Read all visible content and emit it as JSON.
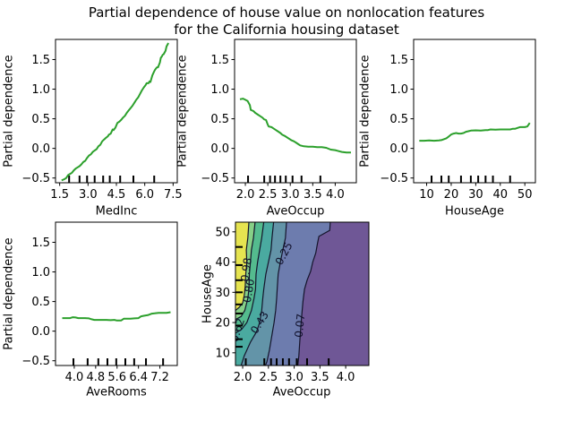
{
  "title": {
    "line1": "Partial dependence of house value on nonlocation features",
    "line2": "for the California housing dataset"
  },
  "colors": {
    "background": "#ffffff",
    "text": "#000000",
    "spine": "#000000",
    "pd_line": "#2ca02c",
    "contour_line": "#14142b"
  },
  "chart_data": [
    {
      "id": "medinc",
      "type": "line",
      "xlabel": "MedInc",
      "ylabel": "Partial dependence",
      "xlim": [
        1.28,
        7.72
      ],
      "ylim": [
        -0.58,
        1.84
      ],
      "xticks": {
        "values": [
          1.5,
          3.0,
          4.5,
          6.0,
          7.5
        ],
        "labels": [
          "1.5",
          "3.0",
          "4.5",
          "6.0",
          "7.5"
        ]
      },
      "yticks": {
        "values": [
          -0.5,
          0.0,
          0.5,
          1.0,
          1.5
        ],
        "labels": [
          "−0.5",
          "0.0",
          "0.5",
          "1.0",
          "1.5"
        ]
      },
      "rug_x": [
        2.0,
        2.55,
        2.95,
        3.35,
        3.8,
        4.15,
        4.7,
        5.4,
        6.5
      ],
      "line_color": "#2ca02c",
      "points": [
        [
          1.6,
          -0.54
        ],
        [
          1.75,
          -0.52
        ],
        [
          1.85,
          -0.5
        ],
        [
          1.95,
          -0.45
        ],
        [
          2.05,
          -0.43
        ],
        [
          2.15,
          -0.41
        ],
        [
          2.25,
          -0.37
        ],
        [
          2.35,
          -0.34
        ],
        [
          2.45,
          -0.32
        ],
        [
          2.55,
          -0.3
        ],
        [
          2.65,
          -0.27
        ],
        [
          2.75,
          -0.23
        ],
        [
          2.85,
          -0.21
        ],
        [
          2.95,
          -0.16
        ],
        [
          3.05,
          -0.12
        ],
        [
          3.15,
          -0.1
        ],
        [
          3.25,
          -0.06
        ],
        [
          3.35,
          -0.035
        ],
        [
          3.45,
          -0.015
        ],
        [
          3.55,
          0.035
        ],
        [
          3.65,
          0.06
        ],
        [
          3.75,
          0.12
        ],
        [
          3.85,
          0.15
        ],
        [
          3.95,
          0.18
        ],
        [
          4.05,
          0.205
        ],
        [
          4.1,
          0.23
        ],
        [
          4.2,
          0.25
        ],
        [
          4.3,
          0.32
        ],
        [
          4.35,
          0.31
        ],
        [
          4.45,
          0.35
        ],
        [
          4.55,
          0.43
        ],
        [
          4.65,
          0.45
        ],
        [
          4.75,
          0.48
        ],
        [
          4.85,
          0.52
        ],
        [
          4.95,
          0.55
        ],
        [
          5.05,
          0.6
        ],
        [
          5.15,
          0.64
        ],
        [
          5.25,
          0.68
        ],
        [
          5.35,
          0.72
        ],
        [
          5.45,
          0.77
        ],
        [
          5.55,
          0.82
        ],
        [
          5.65,
          0.86
        ],
        [
          5.75,
          0.92
        ],
        [
          5.85,
          0.98
        ],
        [
          5.95,
          1.03
        ],
        [
          6.05,
          1.07
        ],
        [
          6.1,
          1.1
        ],
        [
          6.2,
          1.1
        ],
        [
          6.25,
          1.13
        ],
        [
          6.3,
          1.12
        ],
        [
          6.4,
          1.23
        ],
        [
          6.5,
          1.3
        ],
        [
          6.55,
          1.33
        ],
        [
          6.6,
          1.35
        ],
        [
          6.65,
          1.37
        ],
        [
          6.7,
          1.37
        ],
        [
          6.8,
          1.45
        ],
        [
          6.85,
          1.53
        ],
        [
          6.9,
          1.55
        ],
        [
          6.95,
          1.58
        ],
        [
          7.0,
          1.59
        ],
        [
          7.05,
          1.62
        ],
        [
          7.1,
          1.65
        ],
        [
          7.15,
          1.72
        ],
        [
          7.25,
          1.78
        ]
      ]
    },
    {
      "id": "aveoccup",
      "type": "line",
      "xlabel": "AveOccup",
      "ylabel": "Partial dependence",
      "xlim": [
        1.76,
        4.47
      ],
      "ylim": [
        -0.58,
        1.84
      ],
      "xticks": {
        "values": [
          2.0,
          2.5,
          3.0,
          3.5,
          4.0
        ],
        "labels": [
          "2.0",
          "2.5",
          "3.0",
          "3.5",
          "4.0"
        ]
      },
      "yticks": {
        "values": [
          -0.5,
          0.0,
          0.5,
          1.0,
          1.5
        ],
        "labels": [
          "−0.5",
          "0.0",
          "0.5",
          "1.0",
          "1.5"
        ]
      },
      "rug_x": [
        2.06,
        2.42,
        2.55,
        2.66,
        2.78,
        2.9,
        3.05,
        3.25,
        3.67
      ],
      "line_color": "#2ca02c",
      "points": [
        [
          1.88,
          0.83
        ],
        [
          1.95,
          0.84
        ],
        [
          2.0,
          0.82
        ],
        [
          2.05,
          0.8
        ],
        [
          2.1,
          0.73
        ],
        [
          2.12,
          0.65
        ],
        [
          2.18,
          0.63
        ],
        [
          2.22,
          0.6
        ],
        [
          2.28,
          0.57
        ],
        [
          2.32,
          0.55
        ],
        [
          2.38,
          0.52
        ],
        [
          2.42,
          0.49
        ],
        [
          2.46,
          0.48
        ],
        [
          2.5,
          0.4
        ],
        [
          2.52,
          0.37
        ],
        [
          2.58,
          0.36
        ],
        [
          2.62,
          0.34
        ],
        [
          2.68,
          0.31
        ],
        [
          2.72,
          0.29
        ],
        [
          2.78,
          0.26
        ],
        [
          2.82,
          0.23
        ],
        [
          2.88,
          0.21
        ],
        [
          2.92,
          0.19
        ],
        [
          2.98,
          0.16
        ],
        [
          3.02,
          0.14
        ],
        [
          3.08,
          0.12
        ],
        [
          3.12,
          0.1
        ],
        [
          3.18,
          0.07
        ],
        [
          3.22,
          0.05
        ],
        [
          3.3,
          0.035
        ],
        [
          3.4,
          0.03
        ],
        [
          3.5,
          0.03
        ],
        [
          3.6,
          0.02
        ],
        [
          3.7,
          0.02
        ],
        [
          3.8,
          0.01
        ],
        [
          3.9,
          -0.02
        ],
        [
          4.0,
          -0.03
        ],
        [
          4.05,
          -0.04
        ],
        [
          4.15,
          -0.06
        ],
        [
          4.25,
          -0.07
        ],
        [
          4.35,
          -0.07
        ]
      ]
    },
    {
      "id": "houseage",
      "type": "line",
      "xlabel": "HouseAge",
      "ylabel": "Partial dependence",
      "xlim": [
        4.7,
        54.3
      ],
      "ylim": [
        -0.58,
        1.84
      ],
      "xticks": {
        "values": [
          10,
          20,
          30,
          40,
          50
        ],
        "labels": [
          "10",
          "20",
          "30",
          "40",
          "50"
        ]
      },
      "yticks": {
        "values": [
          -0.5,
          0.0,
          0.5,
          1.0,
          1.5
        ],
        "labels": [
          "−0.5",
          "0.0",
          "0.5",
          "1.0",
          "1.5"
        ]
      },
      "rug_x": [
        12,
        16,
        19,
        24,
        28,
        31,
        34,
        37,
        44
      ],
      "line_color": "#2ca02c",
      "points": [
        [
          7,
          0.13
        ],
        [
          9,
          0.13
        ],
        [
          11,
          0.135
        ],
        [
          13,
          0.13
        ],
        [
          15,
          0.135
        ],
        [
          16,
          0.14
        ],
        [
          17,
          0.155
        ],
        [
          18,
          0.17
        ],
        [
          19,
          0.2
        ],
        [
          20,
          0.235
        ],
        [
          21,
          0.25
        ],
        [
          22,
          0.26
        ],
        [
          23,
          0.25
        ],
        [
          24,
          0.25
        ],
        [
          25,
          0.26
        ],
        [
          26,
          0.28
        ],
        [
          27,
          0.29
        ],
        [
          28,
          0.3
        ],
        [
          30,
          0.305
        ],
        [
          32,
          0.3
        ],
        [
          34,
          0.31
        ],
        [
          35,
          0.31
        ],
        [
          36,
          0.32
        ],
        [
          38,
          0.315
        ],
        [
          40,
          0.32
        ],
        [
          42,
          0.32
        ],
        [
          44,
          0.32
        ],
        [
          45,
          0.33
        ],
        [
          46,
          0.33
        ],
        [
          47,
          0.345
        ],
        [
          48,
          0.36
        ],
        [
          50,
          0.36
        ],
        [
          51,
          0.37
        ],
        [
          52,
          0.43
        ]
      ]
    },
    {
      "id": "averooms",
      "type": "line",
      "xlabel": "AveRooms",
      "ylabel": "Partial dependence",
      "xlim": [
        3.3,
        7.85
      ],
      "ylim": [
        -0.58,
        1.84
      ],
      "xticks": {
        "values": [
          4.0,
          4.8,
          5.6,
          6.4,
          7.2
        ],
        "labels": [
          "4.0",
          "4.8",
          "5.6",
          "6.4",
          "7.2"
        ]
      },
      "yticks": {
        "values": [
          -0.5,
          0.0,
          0.5,
          1.0,
          1.5
        ],
        "labels": [
          "−0.5",
          "0.0",
          "0.5",
          "1.0",
          "1.5"
        ]
      },
      "rug_x": [
        3.97,
        4.5,
        4.9,
        5.24,
        5.57,
        5.91,
        6.24,
        6.68,
        7.32
      ],
      "line_color": "#2ca02c",
      "points": [
        [
          3.55,
          0.22
        ],
        [
          3.7,
          0.22
        ],
        [
          3.85,
          0.22
        ],
        [
          3.95,
          0.235
        ],
        [
          4.05,
          0.23
        ],
        [
          4.15,
          0.22
        ],
        [
          4.25,
          0.22
        ],
        [
          4.4,
          0.22
        ],
        [
          4.55,
          0.215
        ],
        [
          4.65,
          0.2
        ],
        [
          4.75,
          0.19
        ],
        [
          4.9,
          0.19
        ],
        [
          5.05,
          0.19
        ],
        [
          5.2,
          0.19
        ],
        [
          5.35,
          0.185
        ],
        [
          5.5,
          0.19
        ],
        [
          5.6,
          0.18
        ],
        [
          5.75,
          0.18
        ],
        [
          5.85,
          0.21
        ],
        [
          6.0,
          0.21
        ],
        [
          6.1,
          0.21
        ],
        [
          6.25,
          0.215
        ],
        [
          6.4,
          0.22
        ],
        [
          6.5,
          0.25
        ],
        [
          6.6,
          0.26
        ],
        [
          6.75,
          0.27
        ],
        [
          6.9,
          0.295
        ],
        [
          7.0,
          0.3
        ],
        [
          7.15,
          0.31
        ],
        [
          7.3,
          0.31
        ],
        [
          7.45,
          0.31
        ],
        [
          7.6,
          0.32
        ]
      ]
    },
    {
      "id": "contour",
      "type": "contour",
      "xlabel": "AveOccup",
      "ylabel": "HouseAge",
      "xlim": [
        1.86,
        4.45
      ],
      "ylim": [
        5.8,
        53.2
      ],
      "xticks": {
        "values": [
          2.0,
          2.5,
          3.0,
          3.5,
          4.0
        ],
        "labels": [
          "2.0",
          "2.5",
          "3.0",
          "3.5",
          "4.0"
        ]
      },
      "yticks": {
        "values": [
          10,
          20,
          30,
          40,
          50
        ],
        "labels": [
          "10",
          "20",
          "30",
          "40",
          "50"
        ]
      },
      "rug_x": [
        2.06,
        2.42,
        2.55,
        2.66,
        2.78,
        2.9,
        3.05,
        3.25,
        3.67
      ],
      "rug_y": [
        12,
        14.5,
        19,
        23,
        26,
        30,
        34,
        39,
        45
      ],
      "line_color": "#14142b",
      "band_colors_high_to_low": [
        "#e6e450",
        "#87d087",
        "#54bb8e",
        "#4aaaa0",
        "#6394a8",
        "#6d7cae",
        "#6f5796"
      ],
      "levels": [
        {
          "label": "0.98",
          "label_center": [
            2.07,
            37.5
          ],
          "label_rotation": -82,
          "points": [
            [
              2.12,
              53.2
            ],
            [
              2.1,
              48
            ],
            [
              2.07,
              44
            ],
            [
              2.08,
              40
            ],
            [
              2.06,
              36
            ],
            [
              2.05,
              32
            ],
            [
              2.03,
              29
            ],
            [
              2.0,
              26.5
            ],
            [
              1.93,
              25
            ],
            [
              1.86,
              24
            ]
          ]
        },
        {
          "label": "0.80",
          "label_center": [
            2.12,
            30.5
          ],
          "label_rotation": -80,
          "points": [
            [
              2.24,
              53.2
            ],
            [
              2.21,
              48
            ],
            [
              2.17,
              44
            ],
            [
              2.15,
              40
            ],
            [
              2.13,
              36
            ],
            [
              2.12,
              31
            ],
            [
              2.1,
              28
            ],
            [
              2.04,
              24
            ],
            [
              1.97,
              22
            ],
            [
              1.86,
              21
            ]
          ]
        },
        {
          "label": "0.62",
          "label_center": [
            1.9,
            17.5
          ],
          "label_rotation": -72,
          "points": [
            [
              2.41,
              53.2
            ],
            [
              2.37,
              48
            ],
            [
              2.33,
              44
            ],
            [
              2.29,
              40
            ],
            [
              2.26,
              36
            ],
            [
              2.25,
              31
            ],
            [
              2.22,
              28
            ],
            [
              2.17,
              24
            ],
            [
              2.08,
              20
            ],
            [
              1.98,
              17.8
            ],
            [
              1.86,
              16.5
            ]
          ]
        },
        {
          "label": "0.43",
          "label_center": [
            2.33,
            20.0
          ],
          "label_rotation": -58,
          "points": [
            [
              2.6,
              53.2
            ],
            [
              2.57,
              48
            ],
            [
              2.55,
              44
            ],
            [
              2.5,
              40
            ],
            [
              2.45,
              36
            ],
            [
              2.41,
              31
            ],
            [
              2.39,
              28
            ],
            [
              2.37,
              24
            ],
            [
              2.33,
              20
            ],
            [
              2.27,
              17
            ],
            [
              2.15,
              13.5
            ],
            [
              2.03,
              9
            ],
            [
              1.97,
              5.8
            ]
          ]
        },
        {
          "label": "0.25",
          "label_center": [
            2.8,
            42.8
          ],
          "label_rotation": -62,
          "points": [
            [
              2.85,
              53.2
            ],
            [
              2.83,
              48
            ],
            [
              2.78,
              44
            ],
            [
              2.73,
              40
            ],
            [
              2.69,
              36
            ],
            [
              2.67,
              31
            ],
            [
              2.66,
              28
            ],
            [
              2.64,
              24
            ],
            [
              2.61,
              20
            ],
            [
              2.57,
              16
            ],
            [
              2.52,
              11
            ],
            [
              2.47,
              7
            ],
            [
              2.44,
              5.8
            ]
          ]
        },
        {
          "label": "0.07",
          "label_center": [
            3.11,
            19.0
          ],
          "label_rotation": -84,
          "points": [
            [
              3.7,
              53.2
            ],
            [
              3.69,
              50.5
            ],
            [
              3.48,
              48.5
            ],
            [
              3.45,
              46
            ],
            [
              3.42,
              43
            ],
            [
              3.36,
              40
            ],
            [
              3.32,
              37
            ],
            [
              3.25,
              34
            ],
            [
              3.2,
              31
            ],
            [
              3.17,
              27
            ],
            [
              3.15,
              23
            ],
            [
              3.13,
              19
            ],
            [
              3.11,
              14
            ],
            [
              3.09,
              9
            ],
            [
              3.07,
              5.8
            ]
          ]
        }
      ]
    }
  ]
}
